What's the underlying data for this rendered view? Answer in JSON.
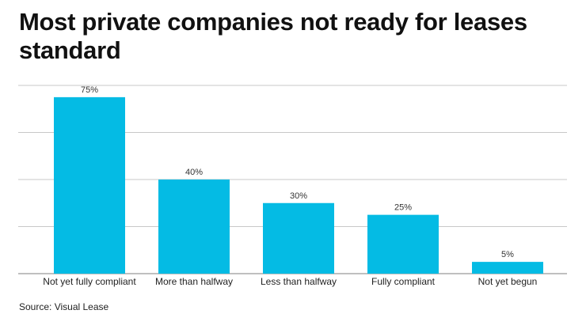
{
  "chart_data": {
    "type": "bar",
    "title": "Most private companies not ready for leases standard",
    "categories": [
      "Not yet fully compliant",
      "More than halfway",
      "Less than halfway",
      "Fully compliant",
      "Not yet begun"
    ],
    "values": [
      75,
      40,
      30,
      25,
      5
    ],
    "data_labels": [
      "75%",
      "40%",
      "30%",
      "25%",
      "5%"
    ],
    "xlabel": "",
    "ylabel": "",
    "ylim": [
      0,
      80
    ],
    "gridlines": [
      0,
      20,
      40,
      60,
      80
    ],
    "grid": true,
    "bar_color": "#04BBE4",
    "source": "Source: Visual Lease"
  }
}
